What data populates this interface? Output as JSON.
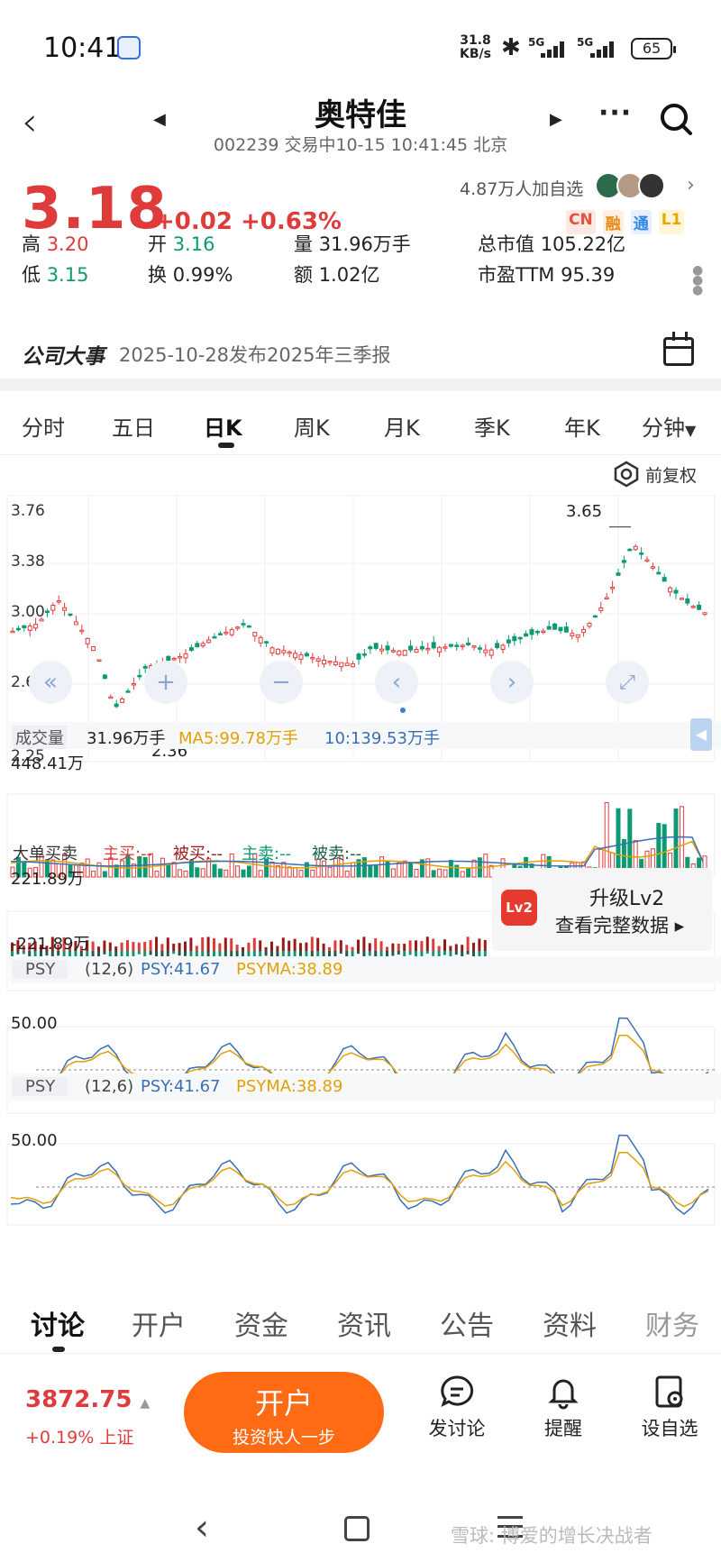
{
  "status_bar": {
    "time": "10:41",
    "net_speed_top": "31.8",
    "net_speed_unit": "KB/s",
    "sig1": "5G",
    "sig2": "5G",
    "battery": "65"
  },
  "header": {
    "title": "奥特佳",
    "subtitle": "002239 交易中10-15 10:41:45 北京"
  },
  "quote": {
    "price": "3.18",
    "change": "+0.02",
    "change_pct": "+0.63%",
    "followers": "4.87万人加自选",
    "badges": [
      "CN",
      "融",
      "通",
      "L1"
    ],
    "stats": {
      "high_label": "高",
      "high": "3.20",
      "low_label": "低",
      "low": "3.15",
      "open_label": "开",
      "open": "3.16",
      "turnover_label": "换",
      "turnover": "0.99%",
      "volume_label": "量",
      "volume": "31.96万手",
      "amount_label": "额",
      "amount": "1.02亿",
      "mcap_label": "总市值",
      "mcap": "105.22亿",
      "pe_label": "市盈TTM",
      "pe": "95.39"
    },
    "colors": {
      "up": "#e03b3b",
      "down": "#0d9a72"
    }
  },
  "event": {
    "label": "公司大事",
    "text": "2025-10-28发布2025年三季报"
  },
  "period_tabs": [
    "分时",
    "五日",
    "日K",
    "周K",
    "月K",
    "季K",
    "年K",
    "分钟"
  ],
  "period_tabs_active": "日K",
  "chart": {
    "adjust_label": "前复权",
    "price_axis": [
      "3.76",
      "3.38",
      "3.00",
      "2.63",
      "2.25"
    ],
    "max_label": "3.65",
    "min_label": "2.36",
    "volume_title": "成交量",
    "volume_value": "31.96万手",
    "vol_ma5": "MA5:99.78万手",
    "vol_ma10": "10:139.53万手",
    "volume_axis": "448.41万",
    "bigorder_title": "大单买卖",
    "bigorder_items": [
      "主买:--",
      "被买:--",
      "主卖:--",
      "被卖:--"
    ],
    "bigorder_axis_top": "221.89万",
    "bigorder_axis_bottom": "-221.89万",
    "upgrade_title": "升级Lv2",
    "upgrade_sub": "查看完整数据 ▸",
    "lv2_badge": "Lv2",
    "psy_label": "PSY",
    "psy_params": "(12,6)",
    "psy_value": "PSY:41.67",
    "psyma_value": "PSYMA:38.89",
    "psy_axis": "50.00"
  },
  "chart_data": {
    "type": "candlestick",
    "price_ylim": [
      2.25,
      3.76
    ],
    "high": 3.65,
    "low": 2.36,
    "series": [
      {
        "name": "PSY",
        "value": 41.67
      },
      {
        "name": "PSYMA",
        "value": 38.89
      }
    ]
  },
  "bottom_tabs": [
    "讨论",
    "开户",
    "资金",
    "资讯",
    "公告",
    "资料",
    "财务"
  ],
  "bottom_tabs_active": "讨论",
  "bottom_bar": {
    "index_value": "3872.75",
    "index_change": "+0.19% 上证",
    "open_account_title": "开户",
    "open_account_sub": "投资快人一步",
    "post_label": "发讨论",
    "remind_label": "提醒",
    "watch_label": "设自选"
  },
  "watermark": "雪球: 博爱的增长决战者"
}
